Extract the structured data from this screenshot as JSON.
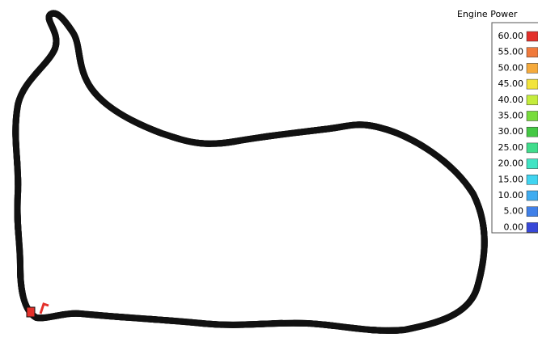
{
  "legend": {
    "title": "Engine Power",
    "items": [
      {
        "label": "60.00",
        "color": "#e3302a"
      },
      {
        "label": "55.00",
        "color": "#f07a3c"
      },
      {
        "label": "50.00",
        "color": "#f5aa3c"
      },
      {
        "label": "45.00",
        "color": "#f2e43c"
      },
      {
        "label": "40.00",
        "color": "#c4ec3c"
      },
      {
        "label": "35.00",
        "color": "#78dc3c"
      },
      {
        "label": "30.00",
        "color": "#44c844"
      },
      {
        "label": "25.00",
        "color": "#40dc8c"
      },
      {
        "label": "20.00",
        "color": "#40e4c4"
      },
      {
        "label": "15.00",
        "color": "#40d4f0"
      },
      {
        "label": "10.00",
        "color": "#40acf0"
      },
      {
        "label": "5.00",
        "color": "#4080e8"
      },
      {
        "label": "0.00",
        "color": "#3848d8"
      }
    ]
  }
}
